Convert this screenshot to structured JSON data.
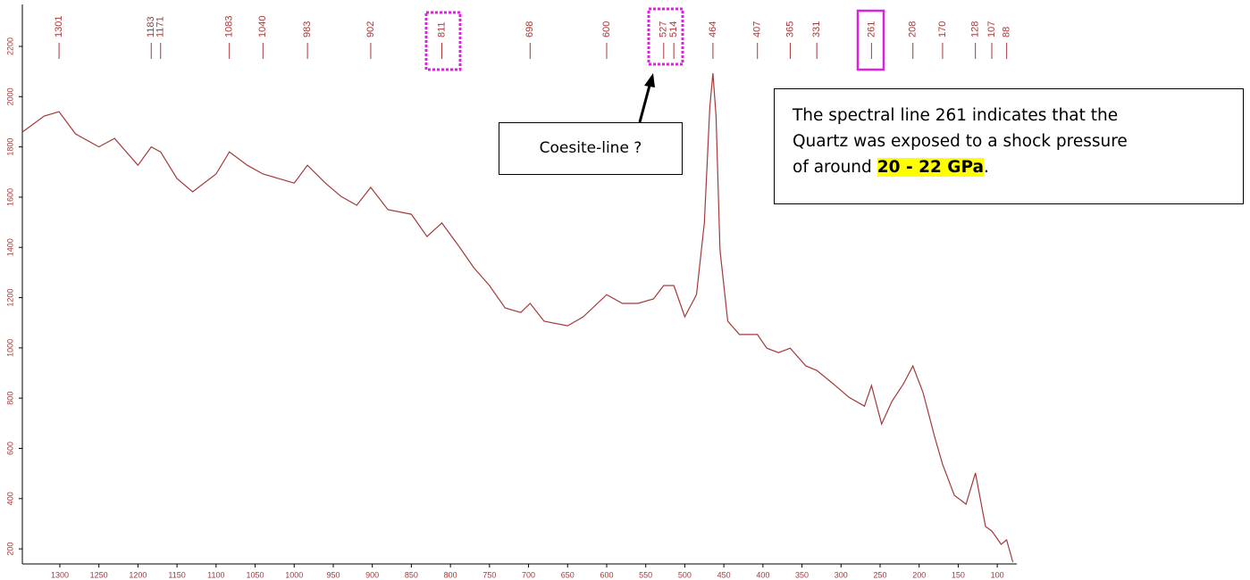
{
  "chart_data": {
    "type": "line",
    "color": "#a33a3a",
    "x": [
      1348,
      1320,
      1301,
      1280,
      1250,
      1230,
      1200,
      1183,
      1171,
      1150,
      1130,
      1100,
      1083,
      1060,
      1040,
      1020,
      1000,
      983,
      960,
      940,
      920,
      902,
      880,
      850,
      830,
      811,
      790,
      770,
      750,
      730,
      710,
      698,
      680,
      650,
      630,
      600,
      580,
      560,
      540,
      527,
      514,
      500,
      485,
      475,
      468,
      464,
      460,
      455,
      445,
      430,
      407,
      395,
      380,
      365,
      345,
      331,
      310,
      290,
      270,
      261,
      248,
      235,
      220,
      208,
      195,
      180,
      170,
      155,
      140,
      128,
      115,
      107,
      95,
      88,
      80
    ],
    "values": [
      1859,
      1923,
      1940,
      1852,
      1800,
      1834,
      1727,
      1800,
      1780,
      1674,
      1621,
      1692,
      1780,
      1727,
      1692,
      1674,
      1656,
      1727,
      1656,
      1603,
      1568,
      1639,
      1550,
      1532,
      1443,
      1497,
      1408,
      1319,
      1248,
      1159,
      1141,
      1177,
      1106,
      1088,
      1124,
      1212,
      1177,
      1177,
      1195,
      1248,
      1248,
      1124,
      1212,
      1497,
      1958,
      2093,
      1923,
      1390,
      1106,
      1053,
      1053,
      999,
      981,
      999,
      928,
      910,
      857,
      804,
      768,
      850,
      697,
      786,
      857,
      928,
      822,
      644,
      537,
      413,
      378,
      502,
      289,
      271,
      218,
      236,
      147
    ],
    "peaks": [
      1301,
      1183,
      1171,
      1083,
      1040,
      983,
      902,
      811,
      698,
      600,
      527,
      514,
      464,
      407,
      365,
      331,
      261,
      208,
      170,
      128,
      107,
      88
    ],
    "xlim": [
      1348,
      75
    ],
    "ylim": [
      140,
      2367
    ],
    "xticks": [
      1300,
      1250,
      1200,
      1150,
      1100,
      1050,
      1000,
      950,
      900,
      850,
      800,
      750,
      700,
      650,
      600,
      550,
      500,
      450,
      400,
      350,
      300,
      250,
      200,
      150,
      100
    ],
    "yticks": [
      200,
      400,
      600,
      800,
      1000,
      1200,
      1400,
      1600,
      1800,
      2000,
      2200
    ],
    "note_coesite": "Coesite-line ?",
    "note_shock": {
      "lines": [
        "The spectral line 261 indicates that the",
        "Quartz was exposed to a shock pressure",
        "of around"
      ],
      "highlight": "20 - 22 GPa",
      "end": "."
    }
  }
}
